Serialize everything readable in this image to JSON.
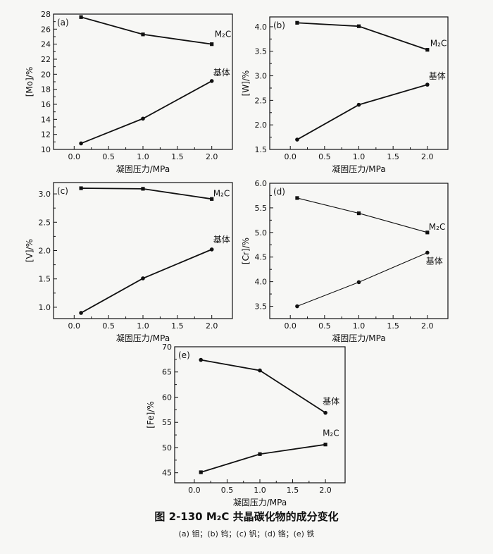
{
  "chart_data": [
    {
      "type": "line",
      "panel_label": "(a)",
      "xlabel": "凝固压力/MPa",
      "ylabel": "[Mo]/%",
      "xlim": [
        -0.3,
        2.3
      ],
      "ylim": [
        10,
        28
      ],
      "xticks": [
        0.0,
        0.5,
        1.0,
        1.5,
        2.0
      ],
      "xtick_labels": [
        "0.0",
        "0.5",
        "1.0",
        "1.5",
        "2.0"
      ],
      "yticks": [
        10,
        12,
        14,
        16,
        18,
        20,
        22,
        24,
        26,
        28
      ],
      "ytick_labels": [
        "10",
        "12",
        "14",
        "16",
        "18",
        "20",
        "22",
        "24",
        "26",
        "28"
      ],
      "series": [
        {
          "name": "M₂C",
          "marker": "square",
          "x": [
            0.1,
            1.0,
            2.0
          ],
          "y": [
            27.6,
            25.3,
            24.0
          ]
        },
        {
          "name": "基体",
          "marker": "circle",
          "x": [
            0.1,
            1.0,
            2.0
          ],
          "y": [
            10.8,
            14.1,
            19.1
          ]
        }
      ]
    },
    {
      "type": "line",
      "panel_label": "(b)",
      "xlabel": "凝固压力/MPa",
      "ylabel": "[W]/%",
      "xlim": [
        -0.3,
        2.3
      ],
      "ylim": [
        1.5,
        4.2
      ],
      "xticks": [
        0.0,
        0.5,
        1.0,
        1.5,
        2.0
      ],
      "xtick_labels": [
        "0.0",
        "0.5",
        "1.0",
        "1.5",
        "2.0"
      ],
      "yticks": [
        1.5,
        2.0,
        2.5,
        3.0,
        3.5,
        4.0
      ],
      "ytick_labels": [
        "1.5",
        "2.0",
        "2.5",
        "3.0",
        "3.5",
        "4.0"
      ],
      "series": [
        {
          "name": "M₂C",
          "marker": "square",
          "x": [
            0.1,
            1.0,
            2.0
          ],
          "y": [
            4.08,
            4.01,
            3.53
          ]
        },
        {
          "name": "基体",
          "marker": "circle",
          "x": [
            0.1,
            1.0,
            2.0
          ],
          "y": [
            1.7,
            2.41,
            2.82
          ]
        }
      ]
    },
    {
      "type": "line",
      "panel_label": "(c)",
      "xlabel": "凝固压力/MPa",
      "ylabel": "[V]/%",
      "xlim": [
        -0.3,
        2.3
      ],
      "ylim": [
        0.8,
        3.2
      ],
      "xticks": [
        0.0,
        0.5,
        1.0,
        1.5,
        2.0
      ],
      "xtick_labels": [
        "0.0",
        "0.5",
        "1.0",
        "1.5",
        "2.0"
      ],
      "yticks": [
        1.0,
        1.5,
        2.0,
        2.5,
        3.0
      ],
      "ytick_labels": [
        "1.0",
        "1.5",
        "2.0",
        "2.5",
        "3.0"
      ],
      "series": [
        {
          "name": "M₂C",
          "marker": "square",
          "x": [
            0.1,
            1.0,
            2.0
          ],
          "y": [
            3.1,
            3.09,
            2.91
          ]
        },
        {
          "name": "基体",
          "marker": "circle",
          "x": [
            0.1,
            1.0,
            2.0
          ],
          "y": [
            0.9,
            1.51,
            2.02
          ]
        }
      ]
    },
    {
      "type": "line",
      "panel_label": "(d)",
      "xlabel": "凝固压力/MPa",
      "ylabel": "[Cr]/%",
      "xlim": [
        -0.3,
        2.3
      ],
      "ylim": [
        3.25,
        6.0
      ],
      "xticks": [
        0.0,
        0.5,
        1.0,
        1.5,
        2.0
      ],
      "xtick_labels": [
        "0.0",
        "0.5",
        "1.0",
        "1.5",
        "2.0"
      ],
      "yticks": [
        3.5,
        4.0,
        4.5,
        5.0,
        5.5,
        6.0
      ],
      "ytick_labels": [
        "3.5",
        "4.0",
        "4.5",
        "5.0",
        "5.5",
        "6.0"
      ],
      "series": [
        {
          "name": "M₂C",
          "marker": "square",
          "x": [
            0.1,
            1.0,
            2.0
          ],
          "y": [
            5.7,
            5.39,
            5.0
          ]
        },
        {
          "name": "基体",
          "marker": "circle",
          "x": [
            0.1,
            1.0,
            2.0
          ],
          "y": [
            3.5,
            3.99,
            4.59
          ]
        }
      ]
    },
    {
      "type": "line",
      "panel_label": "(e)",
      "xlabel": "凝固压力/MPa",
      "ylabel": "[Fe]/%",
      "xlim": [
        -0.3,
        2.3
      ],
      "ylim": [
        43,
        70
      ],
      "xticks": [
        0.0,
        0.5,
        1.0,
        1.5,
        2.0
      ],
      "xtick_labels": [
        "0.0",
        "0.5",
        "1.0",
        "1.5",
        "2.0"
      ],
      "yticks": [
        45,
        50,
        55,
        60,
        65,
        70
      ],
      "ytick_labels": [
        "45",
        "50",
        "55",
        "60",
        "65",
        "70"
      ],
      "series": [
        {
          "name": "基体",
          "marker": "circle",
          "x": [
            0.1,
            1.0,
            2.0
          ],
          "y": [
            67.4,
            65.3,
            56.9
          ]
        },
        {
          "name": "M₂C",
          "marker": "square",
          "x": [
            0.1,
            1.0,
            2.0
          ],
          "y": [
            45.1,
            48.7,
            50.6
          ]
        }
      ]
    }
  ],
  "figure": {
    "title": "图 2-130   M₂C 共晶碳化物的成分变化",
    "subtitle": "(a) 钼；(b) 钨；(c) 钒；(d) 铬；(e) 铁"
  }
}
